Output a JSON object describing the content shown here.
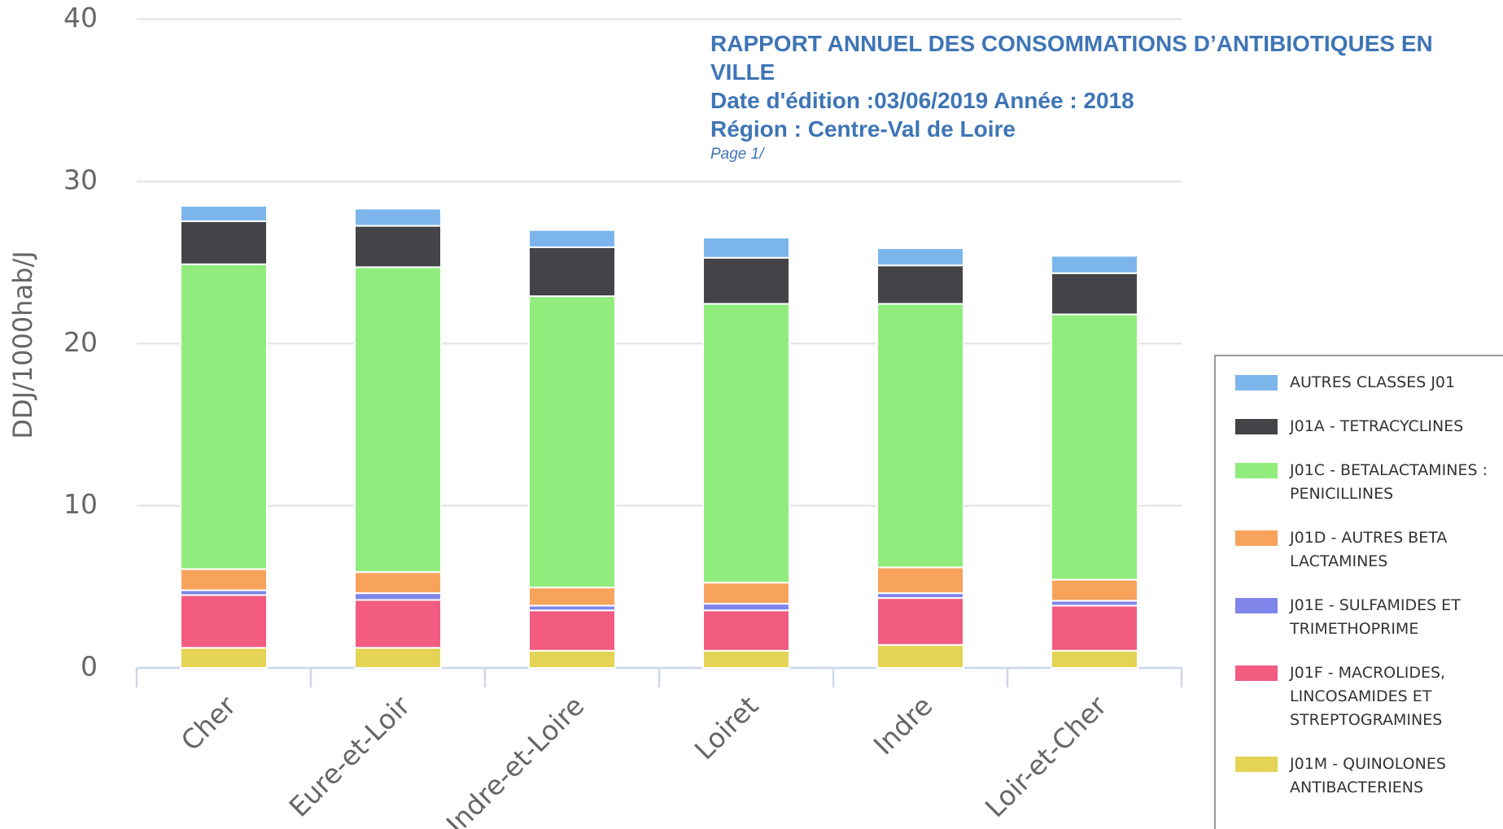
{
  "chart_data": {
    "type": "stacked_bar",
    "title": "RAPPORT ANNUEL DES CONSOMMATIONS D’ANTIBIOTIQUES EN VILLE",
    "annotations": [
      "Date d'édition :03/06/2019 Année : 2018",
      "Région : Centre-Val de Loire",
      "Page 1/"
    ],
    "y_label": "DDJ/1000hab/J",
    "categories": [
      "Cher",
      "Eure-et-Loir",
      "Indre-et-Loire",
      "Loiret",
      "Indre",
      "Loir-et-Cher"
    ],
    "series": [
      {
        "name": "AUTRES CLASSES J01",
        "color": "#7cb5ec",
        "values": [
          0.95,
          1.06,
          1.06,
          1.24,
          1.06,
          1.07
        ]
      },
      {
        "name": "J01A - TETRACYCLINES",
        "color": "#434348",
        "values": [
          2.65,
          2.55,
          3.02,
          2.84,
          2.37,
          2.54
        ]
      },
      {
        "name": "J01C - BETALACTAMINES : PENICILLINES",
        "color": "#90ed7d",
        "values": [
          18.8,
          18.8,
          17.96,
          17.19,
          16.25,
          16.36
        ]
      },
      {
        "name": "J01D - AUTRES BETA LACTAMINES",
        "color": "#f7a35c",
        "values": [
          1.3,
          1.3,
          1.12,
          1.3,
          1.59,
          1.3
        ]
      },
      {
        "name": "J01E - SULFAMIDES ET TRIMETHOPRIME",
        "color": "#8085e9",
        "values": [
          0.3,
          0.42,
          0.29,
          0.41,
          0.3,
          0.3
        ]
      },
      {
        "name": "J01F - MACROLIDES, LINCOSAMIDES ET STREPTOGRAMINES",
        "color": "#f15c80",
        "values": [
          3.25,
          2.95,
          2.49,
          2.49,
          2.89,
          2.78
        ]
      },
      {
        "name": "J01M - QUINOLONES ANTIBACTERIENS",
        "color": "#e4d354",
        "values": [
          1.24,
          1.24,
          1.06,
          1.06,
          1.42,
          1.06
        ]
      }
    ],
    "ylim": [
      0,
      40
    ],
    "yticks": [
      0,
      10,
      20,
      30,
      40
    ],
    "grid": true,
    "legend": "right"
  }
}
